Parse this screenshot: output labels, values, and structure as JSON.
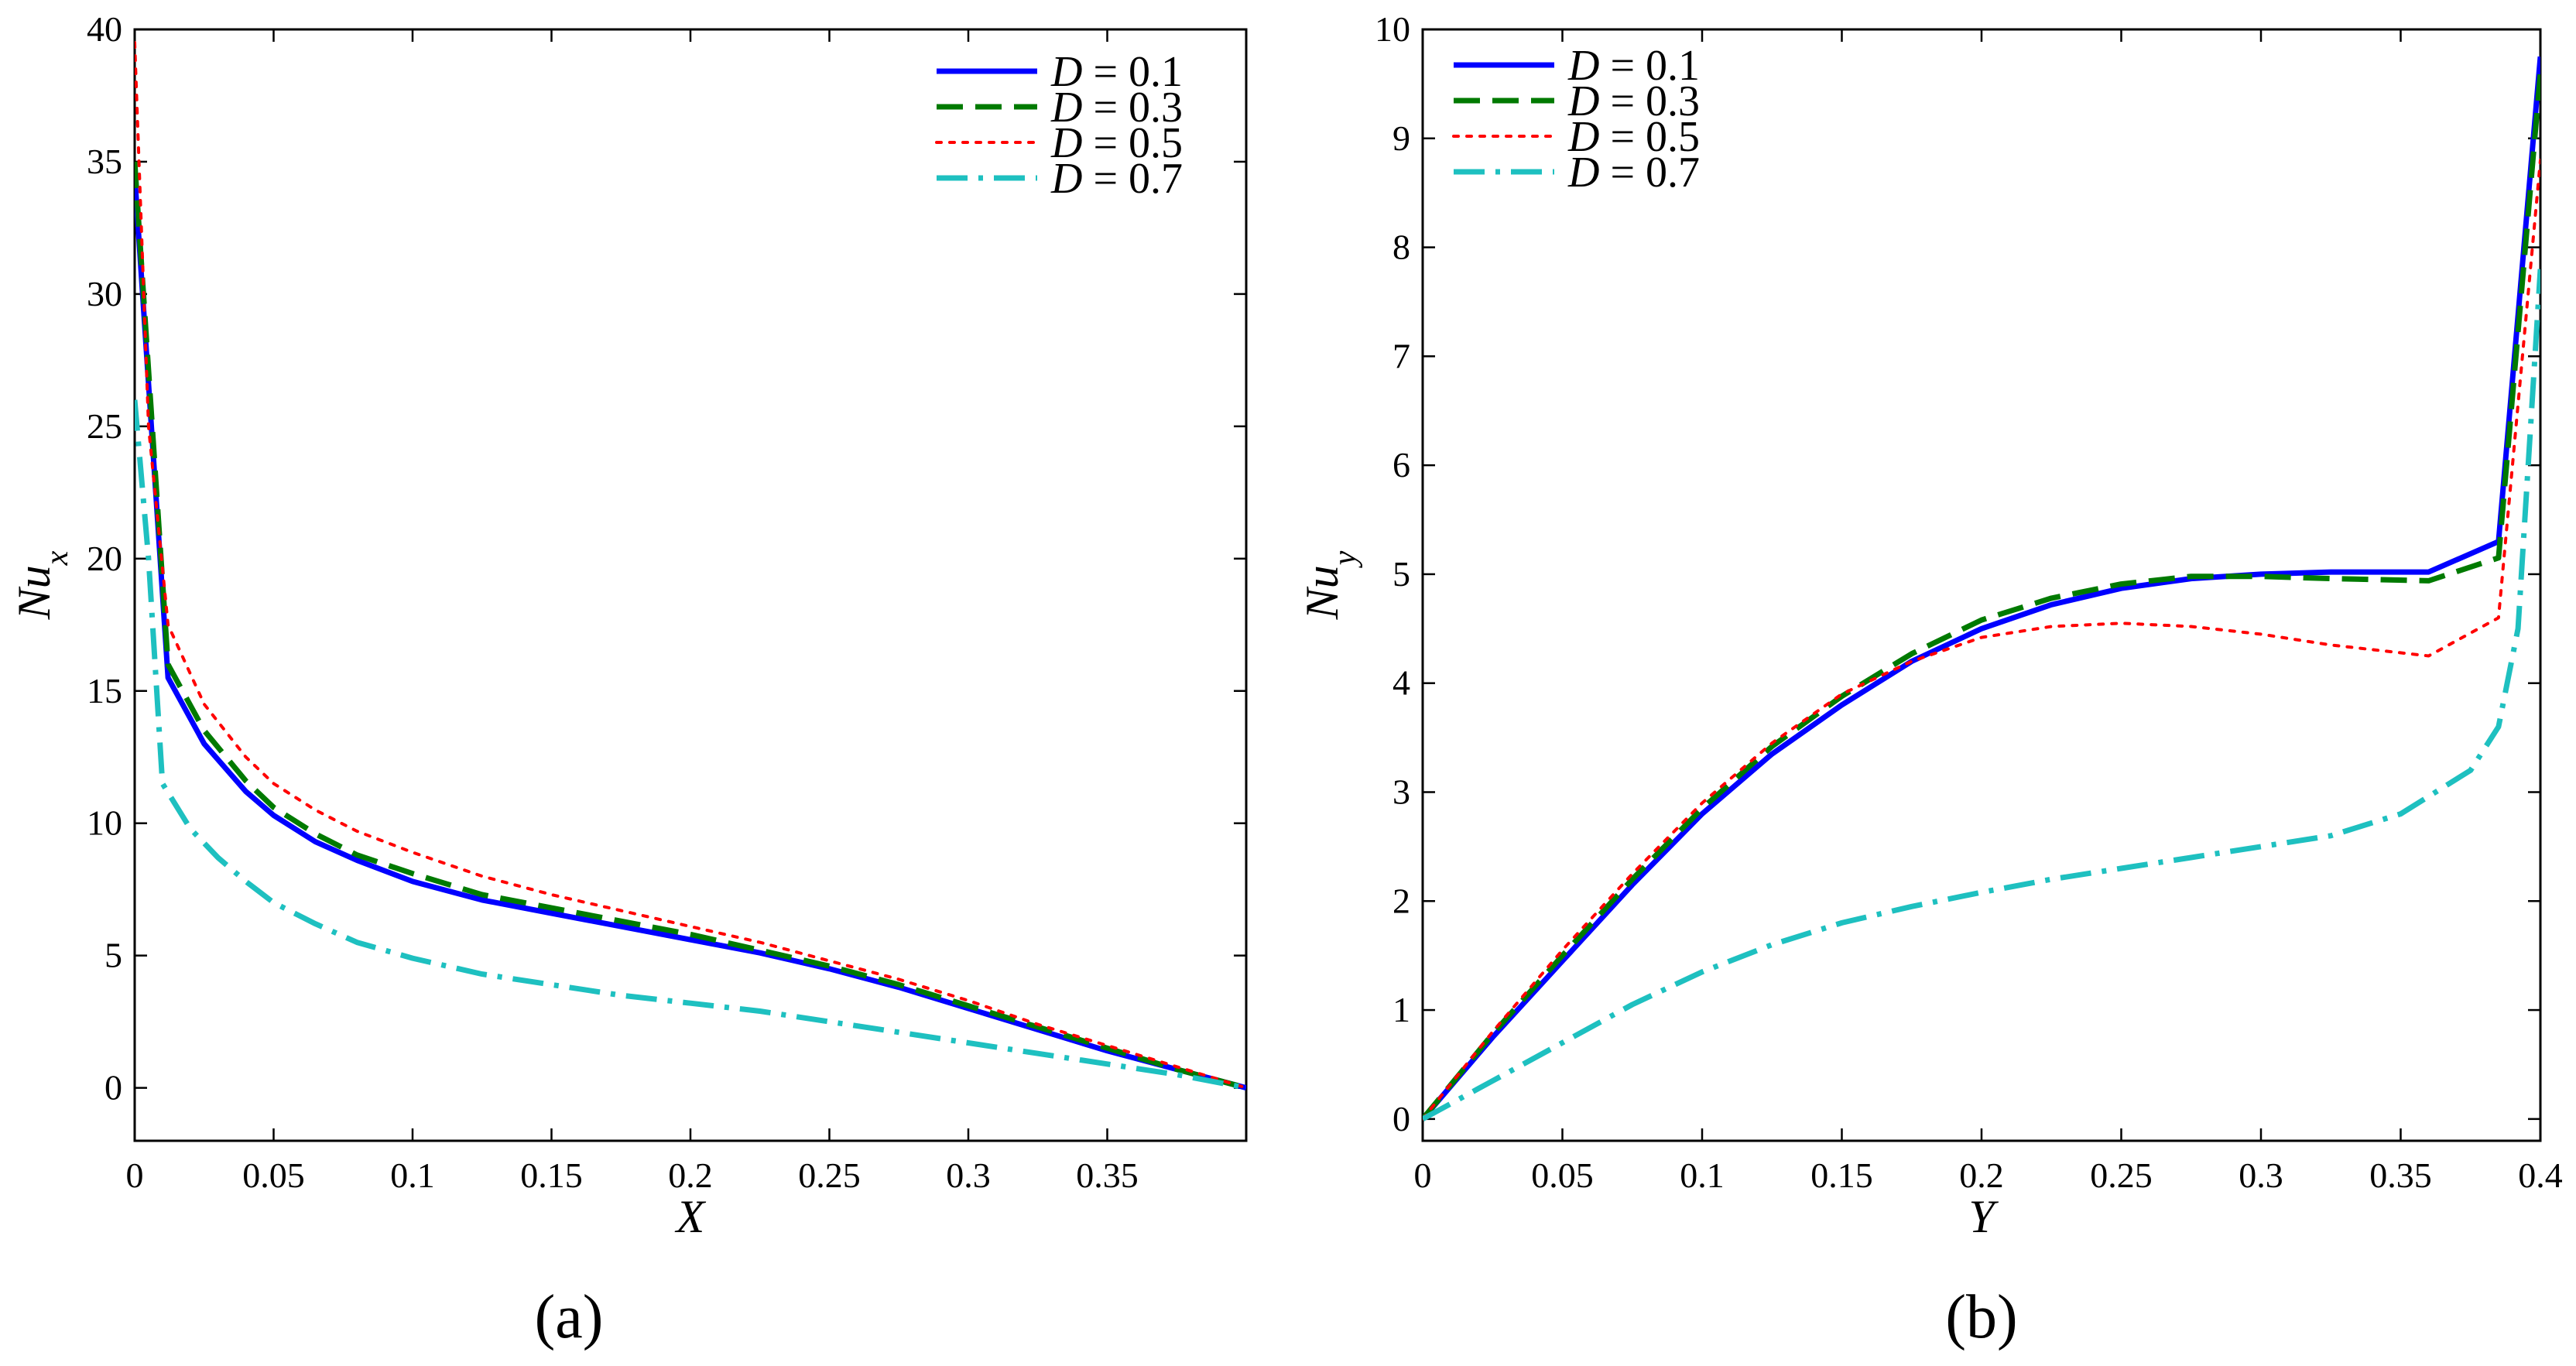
{
  "chart_data": [
    {
      "type": "line",
      "caption": "(a)",
      "xlabel": "X",
      "ylabel": "Nu",
      "ylabel_sub": "x",
      "xlim": [
        0,
        0.4
      ],
      "ylim": [
        -2,
        40
      ],
      "x_ticks": [
        0,
        0.05,
        0.1,
        0.15,
        0.2,
        0.25,
        0.3,
        0.35
      ],
      "x_tick_labels": [
        "0",
        "0.05",
        "0.1",
        "0.15",
        "0.2",
        "0.25",
        "0.3",
        "0.35"
      ],
      "y_ticks": [
        0,
        5,
        10,
        15,
        20,
        25,
        30,
        35,
        40
      ],
      "y_tick_labels": [
        "0",
        "5",
        "10",
        "15",
        "20",
        "25",
        "30",
        "35",
        "40"
      ],
      "legend_position": "top-right",
      "series": [
        {
          "name": "D = 0.1",
          "legend_var": "D",
          "legend_value": "= 0.1",
          "color": "#0000ff",
          "style": "solid",
          "x": [
            0,
            0.012,
            0.025,
            0.04,
            0.05,
            0.065,
            0.08,
            0.1,
            0.125,
            0.15,
            0.175,
            0.2,
            0.225,
            0.25,
            0.275,
            0.3,
            0.325,
            0.35,
            0.375,
            0.4
          ],
          "y": [
            34.5,
            15.5,
            13.0,
            11.2,
            10.3,
            9.3,
            8.6,
            7.8,
            7.1,
            6.6,
            6.1,
            5.6,
            5.1,
            4.5,
            3.8,
            3.0,
            2.2,
            1.4,
            0.7,
            0
          ]
        },
        {
          "name": "D = 0.3",
          "legend_var": "D",
          "legend_value": "= 0.3",
          "color": "#007a00",
          "style": "dashed",
          "x": [
            0,
            0.012,
            0.025,
            0.04,
            0.05,
            0.065,
            0.08,
            0.1,
            0.125,
            0.15,
            0.175,
            0.2,
            0.225,
            0.25,
            0.275,
            0.3,
            0.325,
            0.35,
            0.375,
            0.4
          ],
          "y": [
            35.0,
            16.0,
            13.5,
            11.6,
            10.6,
            9.6,
            8.8,
            8.1,
            7.3,
            6.8,
            6.3,
            5.8,
            5.2,
            4.6,
            3.9,
            3.1,
            2.3,
            1.5,
            0.7,
            0
          ]
        },
        {
          "name": "D = 0.5",
          "legend_var": "D",
          "legend_value": "= 0.5",
          "color": "#ff0000",
          "style": "dotted",
          "x": [
            0,
            0.005,
            0.012,
            0.025,
            0.04,
            0.05,
            0.065,
            0.08,
            0.1,
            0.125,
            0.15,
            0.175,
            0.2,
            0.225,
            0.25,
            0.275,
            0.3,
            0.325,
            0.35,
            0.375,
            0.4
          ],
          "y": [
            39.5,
            25.0,
            17.5,
            14.5,
            12.5,
            11.5,
            10.5,
            9.7,
            8.9,
            8.0,
            7.3,
            6.7,
            6.1,
            5.5,
            4.8,
            4.1,
            3.3,
            2.4,
            1.6,
            0.8,
            0
          ]
        },
        {
          "name": "D = 0.7",
          "legend_var": "D",
          "legend_value": "= 0.7",
          "color": "#1ec0c0",
          "style": "dashdot",
          "x": [
            0,
            0.005,
            0.01,
            0.02,
            0.03,
            0.04,
            0.05,
            0.065,
            0.08,
            0.1,
            0.125,
            0.15,
            0.175,
            0.2,
            0.225,
            0.25,
            0.275,
            0.3,
            0.325,
            0.35,
            0.375,
            0.4
          ],
          "y": [
            26.0,
            20.0,
            11.5,
            9.8,
            8.7,
            7.8,
            7.0,
            6.2,
            5.5,
            4.9,
            4.3,
            3.9,
            3.5,
            3.2,
            2.9,
            2.5,
            2.1,
            1.7,
            1.3,
            0.9,
            0.5,
            0
          ]
        }
      ]
    },
    {
      "type": "line",
      "caption": "(b)",
      "xlabel": "Y",
      "ylabel": "Nu",
      "ylabel_sub": "y",
      "xlim": [
        0,
        0.4
      ],
      "ylim": [
        -0.2,
        10
      ],
      "x_ticks": [
        0,
        0.05,
        0.1,
        0.15,
        0.2,
        0.25,
        0.3,
        0.35,
        0.4
      ],
      "x_tick_labels": [
        "0",
        "0.05",
        "0.1",
        "0.15",
        "0.2",
        "0.25",
        "0.3",
        "0.35",
        "0.4"
      ],
      "y_ticks": [
        0,
        1,
        2,
        3,
        4,
        5,
        6,
        7,
        8,
        9,
        10
      ],
      "y_tick_labels": [
        "0",
        "1",
        "2",
        "3",
        "4",
        "5",
        "6",
        "7",
        "8",
        "9",
        "10"
      ],
      "legend_position": "top-left",
      "series": [
        {
          "name": "D = 0.1",
          "legend_var": "D",
          "legend_value": "= 0.1",
          "color": "#0000ff",
          "style": "solid",
          "x": [
            0,
            0.025,
            0.05,
            0.075,
            0.1,
            0.125,
            0.15,
            0.175,
            0.2,
            0.225,
            0.25,
            0.275,
            0.3,
            0.325,
            0.36,
            0.385,
            0.4
          ],
          "y": [
            0,
            0.75,
            1.45,
            2.15,
            2.8,
            3.35,
            3.8,
            4.2,
            4.5,
            4.72,
            4.87,
            4.96,
            5.0,
            5.02,
            5.02,
            5.3,
            9.75
          ]
        },
        {
          "name": "D = 0.3",
          "legend_var": "D",
          "legend_value": "= 0.3",
          "color": "#007a00",
          "style": "dashed",
          "x": [
            0,
            0.025,
            0.05,
            0.075,
            0.1,
            0.125,
            0.15,
            0.175,
            0.2,
            0.225,
            0.25,
            0.275,
            0.3,
            0.325,
            0.36,
            0.385,
            0.4
          ],
          "y": [
            0,
            0.78,
            1.5,
            2.2,
            2.85,
            3.42,
            3.88,
            4.27,
            4.58,
            4.78,
            4.91,
            4.98,
            4.98,
            4.96,
            4.94,
            5.15,
            9.6
          ]
        },
        {
          "name": "D = 0.5",
          "legend_var": "D",
          "legend_value": "= 0.5",
          "color": "#ff0000",
          "style": "dotted",
          "x": [
            0,
            0.025,
            0.05,
            0.075,
            0.1,
            0.125,
            0.15,
            0.175,
            0.2,
            0.225,
            0.25,
            0.275,
            0.3,
            0.325,
            0.36,
            0.385,
            0.4
          ],
          "y": [
            0,
            0.8,
            1.55,
            2.25,
            2.9,
            3.45,
            3.9,
            4.2,
            4.42,
            4.52,
            4.55,
            4.52,
            4.45,
            4.35,
            4.25,
            4.6,
            8.8
          ]
        },
        {
          "name": "D = 0.7",
          "legend_var": "D",
          "legend_value": "= 0.7",
          "color": "#1ec0c0",
          "style": "dashdot",
          "x": [
            0,
            0.025,
            0.05,
            0.075,
            0.1,
            0.125,
            0.15,
            0.175,
            0.2,
            0.225,
            0.25,
            0.275,
            0.3,
            0.325,
            0.35,
            0.375,
            0.385,
            0.392,
            0.4
          ],
          "y": [
            0,
            0.35,
            0.7,
            1.05,
            1.35,
            1.6,
            1.8,
            1.95,
            2.08,
            2.2,
            2.3,
            2.4,
            2.5,
            2.6,
            2.8,
            3.2,
            3.6,
            4.5,
            7.8
          ]
        }
      ]
    }
  ]
}
